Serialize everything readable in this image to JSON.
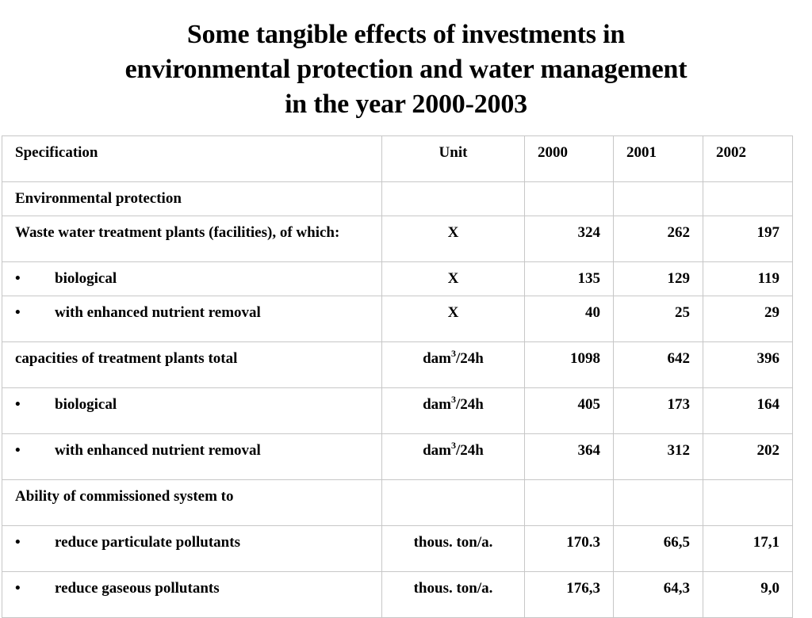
{
  "title": {
    "line1": "Some tangible effects of investments in",
    "line2": "environmental protection and water management",
    "line3": "in the year 2000-2003"
  },
  "table": {
    "headers": {
      "specification": "Specification",
      "unit": "Unit",
      "y2000": "2000",
      "y2001": "2001",
      "y2002": "2002"
    },
    "bullet": "•",
    "rows": [
      {
        "label": "Environmental protection",
        "unit": "",
        "v2000": "",
        "v2001": "",
        "v2002": ""
      },
      {
        "label": "Waste water treatment plants (facilities), of which:",
        "unit": "X",
        "v2000": "324",
        "v2001": "262",
        "v2002": "197"
      },
      {
        "label": "biological",
        "unit": "X",
        "v2000": "135",
        "v2001": "129",
        "v2002": "119"
      },
      {
        "label": "with enhanced nutrient removal",
        "unit": "X",
        "v2000": "40",
        "v2001": "25",
        "v2002": "29"
      },
      {
        "label": "capacities of treatment plants total",
        "unit_base": "dam",
        "unit_sup": "3",
        "unit_tail": "/24h",
        "v2000": "1098",
        "v2001": "642",
        "v2002": "396"
      },
      {
        "label": "biological",
        "unit_base": "dam",
        "unit_sup": "3",
        "unit_tail": "/24h",
        "v2000": "405",
        "v2001": "173",
        "v2002": "164"
      },
      {
        "label": "with enhanced nutrient removal",
        "unit_base": "dam",
        "unit_sup": "3",
        "unit_tail": "/24h",
        "v2000": "364",
        "v2001": "312",
        "v2002": "202"
      },
      {
        "label": "Ability of commissioned system to",
        "unit": "",
        "v2000": "",
        "v2001": "",
        "v2002": ""
      },
      {
        "label": "reduce particulate pollutants",
        "unit": "thous. ton/a.",
        "v2000": "170.3",
        "v2001": "66,5",
        "v2002": "17,1"
      },
      {
        "label": "reduce gaseous pollutants",
        "unit": "thous. ton/a.",
        "v2000": "176,3",
        "v2001": "64,3",
        "v2002": "9,0"
      }
    ]
  }
}
